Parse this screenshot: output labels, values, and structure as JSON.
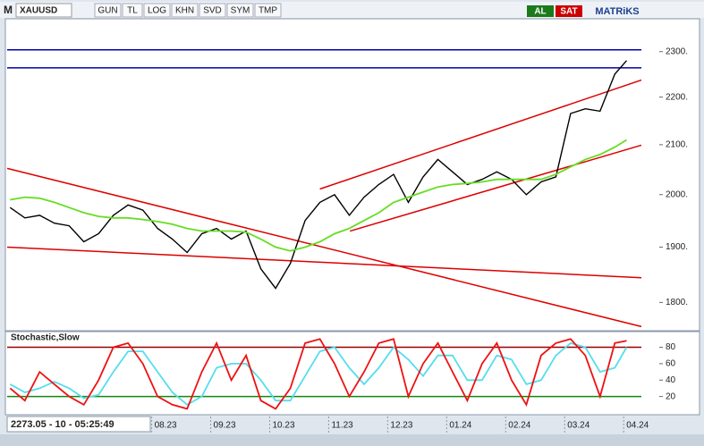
{
  "toolbar": {
    "logo": "M",
    "symbol": "XAUUSD",
    "buttons": [
      "GUN",
      "TL",
      "LOG",
      "KHN",
      "SVD",
      "SYM",
      "TMP"
    ],
    "buy": "AL",
    "sell": "SAT",
    "brand": "MATRiKS"
  },
  "status": "2273.05 - 10 - 05:25:49",
  "chart_data": [
    {
      "type": "line",
      "log_scale": true,
      "x": [
        -2.4,
        -2.15,
        -1.9,
        -1.65,
        -1.4,
        -1.15,
        -0.9,
        -0.65,
        -0.4,
        -0.15,
        0.1,
        0.35,
        0.6,
        0.85,
        1.1,
        1.35,
        1.6,
        1.85,
        2.1,
        2.35,
        2.6,
        2.85,
        3.1,
        3.35,
        3.6,
        3.85,
        4.1,
        4.35,
        4.6,
        4.85,
        5.1,
        5.35,
        5.6,
        5.85,
        6.1,
        6.35,
        6.6,
        6.85,
        7.1,
        7.35,
        7.6,
        7.85,
        8.05
      ],
      "series": [
        {
          "color": "#000000",
          "values": [
            1975,
            1955,
            1960,
            1945,
            1940,
            1910,
            1925,
            1960,
            1980,
            1970,
            1935,
            1915,
            1890,
            1925,
            1935,
            1915,
            1930,
            1860,
            1825,
            1870,
            1950,
            1985,
            2000,
            1960,
            1995,
            2020,
            2040,
            1985,
            2035,
            2070,
            2045,
            2020,
            2030,
            2045,
            2030,
            2000,
            2025,
            2035,
            2165,
            2175,
            2170,
            2250,
            2280
          ]
        },
        {
          "color": "#66dd22",
          "values": [
            1990,
            1995,
            1993,
            1985,
            1975,
            1965,
            1958,
            1955,
            1955,
            1952,
            1948,
            1943,
            1935,
            1930,
            1930,
            1930,
            1928,
            1915,
            1900,
            1893,
            1900,
            1910,
            1925,
            1935,
            1950,
            1965,
            1985,
            1995,
            2005,
            2015,
            2020,
            2022,
            2025,
            2030,
            2030,
            2030,
            2030,
            2040,
            2055,
            2070,
            2080,
            2095,
            2110
          ]
        }
      ],
      "lines": [
        {
          "color": "#0000aa",
          "x": [
            -2.45,
            8.3
          ],
          "values": [
            2304,
            2304
          ]
        },
        {
          "color": "#0000aa",
          "x": [
            -2.45,
            8.3
          ],
          "values": [
            2264,
            2264
          ]
        },
        {
          "color": "#dd0000",
          "x": [
            -2.45,
            8.3
          ],
          "values": [
            2052,
            1758
          ]
        },
        {
          "color": "#dd0000",
          "x": [
            -2.45,
            8.3
          ],
          "values": [
            1900,
            1844
          ]
        },
        {
          "color": "#dd0000",
          "x": [
            2.85,
            8.3
          ],
          "values": [
            2011,
            2237
          ]
        },
        {
          "color": "#dd0000",
          "x": [
            3.36,
            8.3
          ],
          "values": [
            1930,
            2099
          ]
        }
      ],
      "xlim": [
        -2.45,
        8.3
      ],
      "ylim": [
        1754,
        2373
      ],
      "yticks": [
        {
          "value": 1800,
          "label": "1800."
        },
        {
          "value": 1900,
          "label": "1900."
        },
        {
          "value": 2000,
          "label": "2000."
        },
        {
          "value": 2100,
          "label": "2100."
        },
        {
          "value": 2200,
          "label": "2200."
        },
        {
          "value": 2300,
          "label": "2300."
        }
      ],
      "xticks": [
        {
          "value": 0,
          "label": "08.23"
        },
        {
          "value": 1,
          "label": "09.23"
        },
        {
          "value": 2,
          "label": "10.23"
        },
        {
          "value": 3,
          "label": "11.23"
        },
        {
          "value": 4,
          "label": "12.23"
        },
        {
          "value": 5,
          "label": "01.24"
        },
        {
          "value": 6,
          "label": "02.24"
        },
        {
          "value": 7,
          "label": "03.24"
        },
        {
          "value": 8,
          "label": "04.24"
        }
      ]
    },
    {
      "type": "line",
      "title": "Stochastic,Slow",
      "x": [
        -2.4,
        -2.15,
        -1.9,
        -1.65,
        -1.4,
        -1.15,
        -0.9,
        -0.65,
        -0.4,
        -0.15,
        0.1,
        0.35,
        0.6,
        0.85,
        1.1,
        1.35,
        1.6,
        1.85,
        2.1,
        2.35,
        2.6,
        2.85,
        3.1,
        3.35,
        3.6,
        3.85,
        4.1,
        4.35,
        4.6,
        4.85,
        5.1,
        5.35,
        5.6,
        5.85,
        6.1,
        6.35,
        6.6,
        6.85,
        7.1,
        7.35,
        7.6,
        7.85,
        8.05
      ],
      "series": [
        {
          "color": "#55ddee",
          "values": [
            35,
            25,
            30,
            38,
            30,
            18,
            22,
            50,
            75,
            75,
            50,
            25,
            10,
            20,
            55,
            60,
            60,
            40,
            15,
            15,
            45,
            75,
            80,
            55,
            35,
            55,
            80,
            65,
            45,
            70,
            70,
            40,
            40,
            70,
            65,
            35,
            40,
            70,
            85,
            80,
            50,
            55,
            80
          ]
        },
        {
          "color": "#ee1111",
          "values": [
            30,
            15,
            50,
            35,
            20,
            10,
            40,
            80,
            85,
            60,
            20,
            10,
            5,
            50,
            85,
            40,
            70,
            15,
            5,
            30,
            85,
            90,
            60,
            20,
            50,
            85,
            90,
            20,
            60,
            85,
            50,
            15,
            60,
            85,
            40,
            10,
            70,
            85,
            90,
            70,
            20,
            85,
            88
          ]
        }
      ],
      "hlines": [
        {
          "value": 80,
          "color": "#990000"
        },
        {
          "value": 20,
          "color": "#118811"
        }
      ],
      "xlim": [
        -2.45,
        8.3
      ],
      "ylim": [
        0,
        98
      ],
      "yticks": [
        20,
        40,
        60,
        80
      ]
    }
  ]
}
